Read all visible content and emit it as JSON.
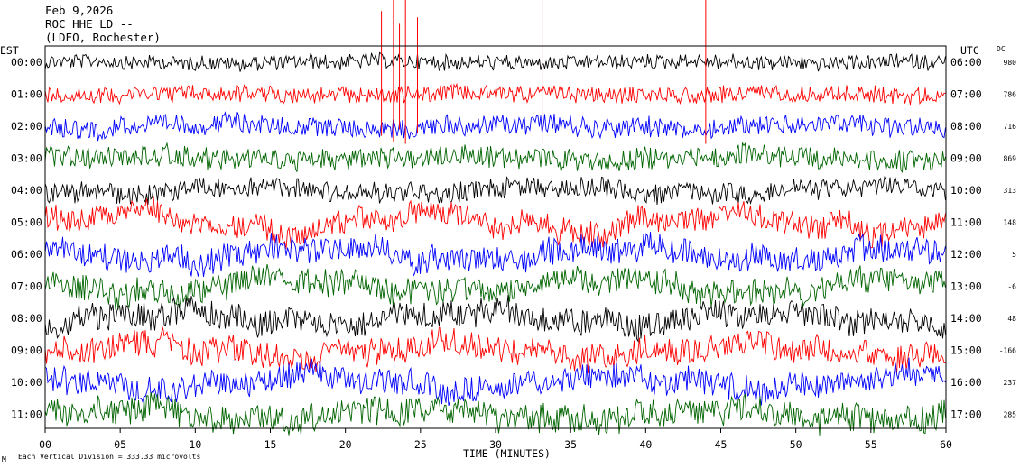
{
  "header": {
    "date": "Feb 9,2026",
    "station": "ROC HHE LD --",
    "network": "(LDEO, Rochester)"
  },
  "left_axis_title": "EST",
  "right_axis_title": "UTC",
  "dc_title": "DC",
  "x_axis_title": "TIME (MINUTES)",
  "footer_note": "Each Vertical Division =  333.33 microvolts",
  "footer_mark": "M",
  "colors": {
    "black": "#000000",
    "red": "#ff0000",
    "blue": "#0000ff",
    "green": "#006400"
  },
  "chart_data": {
    "type": "line",
    "subtype": "helicorder",
    "title": "",
    "xlabel": "TIME (MINUTES)",
    "xlim": [
      0,
      60
    ],
    "x_ticks": [
      "00",
      "05",
      "10",
      "15",
      "20",
      "25",
      "30",
      "35",
      "40",
      "45",
      "50",
      "55",
      "60"
    ],
    "rows": [
      {
        "est": "00:00",
        "utc": "06:00",
        "dc": "980",
        "color": "black",
        "amplitude": 0.45,
        "wander": 0.1
      },
      {
        "est": "01:00",
        "utc": "07:00",
        "dc": "786",
        "color": "red",
        "amplitude": 0.5,
        "wander": 0.12
      },
      {
        "est": "02:00",
        "utc": "08:00",
        "dc": "716",
        "color": "blue",
        "amplitude": 0.6,
        "wander": 0.25
      },
      {
        "est": "03:00",
        "utc": "09:00",
        "dc": "869",
        "color": "green",
        "amplitude": 0.65,
        "wander": 0.25
      },
      {
        "est": "04:00",
        "utc": "10:00",
        "dc": "313",
        "color": "black",
        "amplitude": 0.6,
        "wander": 0.35
      },
      {
        "est": "05:00",
        "utc": "11:00",
        "dc": "148",
        "color": "red",
        "amplitude": 0.75,
        "wander": 0.9
      },
      {
        "est": "06:00",
        "utc": "12:00",
        "dc": "5",
        "color": "blue",
        "amplitude": 0.8,
        "wander": 0.7
      },
      {
        "est": "07:00",
        "utc": "13:00",
        "dc": "-6",
        "color": "green",
        "amplitude": 0.8,
        "wander": 0.7
      },
      {
        "est": "08:00",
        "utc": "14:00",
        "dc": "48",
        "color": "black",
        "amplitude": 0.8,
        "wander": 0.65
      },
      {
        "est": "09:00",
        "utc": "15:00",
        "dc": "-166",
        "color": "red",
        "amplitude": 0.8,
        "wander": 0.65
      },
      {
        "est": "10:00",
        "utc": "16:00",
        "dc": "237",
        "color": "blue",
        "amplitude": 0.8,
        "wander": 0.6
      },
      {
        "est": "11:00",
        "utc": "17:00",
        "dc": "285",
        "color": "green",
        "amplitude": 0.85,
        "wander": 0.6
      }
    ],
    "spikes": [
      {
        "row": 1,
        "minute": 22.4,
        "height": 2.6
      },
      {
        "row": 1,
        "minute": 23.2,
        "height": 3.0
      },
      {
        "row": 1,
        "minute": 23.6,
        "height": 2.2
      },
      {
        "row": 1,
        "minute": 24.0,
        "height": 3.1
      },
      {
        "row": 1,
        "minute": 24.8,
        "height": 2.4
      },
      {
        "row": 1,
        "minute": 33.1,
        "height": 3.1
      },
      {
        "row": 1,
        "minute": 44.0,
        "height": 3.1
      }
    ]
  }
}
